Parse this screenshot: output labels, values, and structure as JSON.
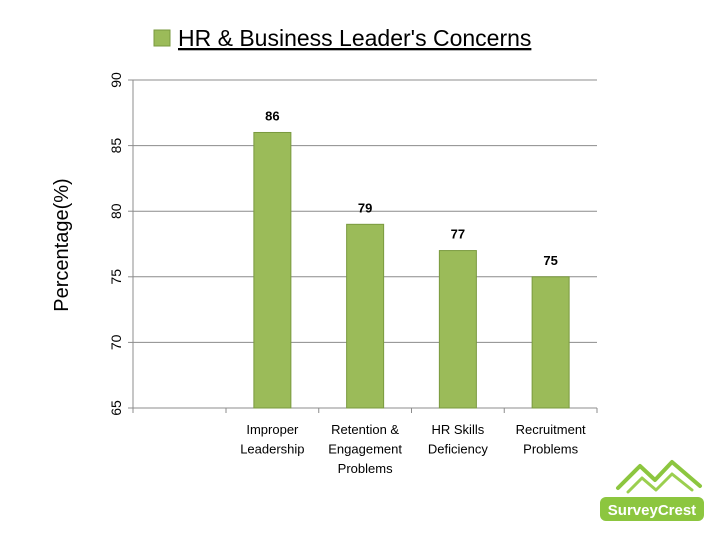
{
  "chart_data": {
    "type": "bar",
    "title": "",
    "xlabel": "",
    "ylabel": "Percentage(%)",
    "ylim": [
      65,
      90
    ],
    "yticks": [
      65,
      70,
      75,
      80,
      85,
      90
    ],
    "grid": true,
    "legend_position": "top",
    "categories": [
      [
        "Improper",
        "Leadership"
      ],
      [
        "Retention &",
        "Engagement",
        "Problems"
      ],
      [
        "HR Skills",
        "Deficiency"
      ],
      [
        "Recruitment",
        "Problems"
      ]
    ],
    "series": [
      {
        "name": "HR & Business Leader's Concerns",
        "values": [
          86,
          79,
          77,
          75
        ],
        "color": "#9bbb59"
      }
    ],
    "data_labels": [
      "86",
      "79",
      "77",
      "75"
    ]
  },
  "logo": {
    "text": "SurveyCrest",
    "color": "#8cc63f"
  }
}
